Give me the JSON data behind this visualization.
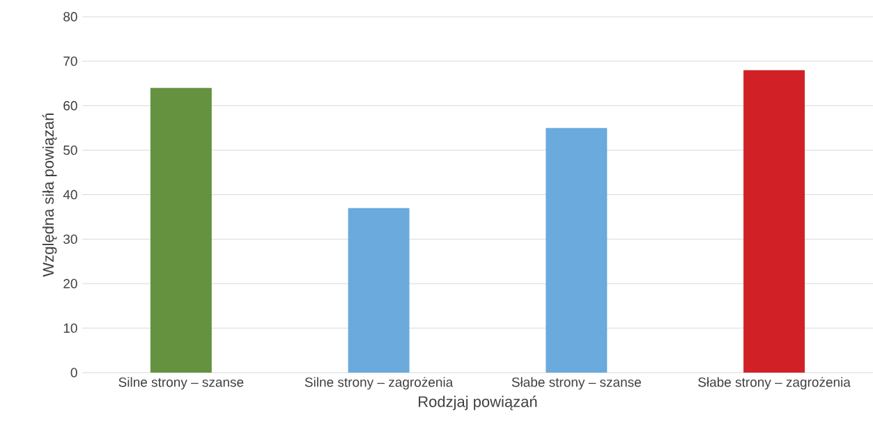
{
  "chart_data": {
    "type": "bar",
    "xlabel": "Rodzjaj powiązań",
    "ylabel": "Względna siła powiązań",
    "categories": [
      "Silne strony – szanse",
      "Silne strony – zagrożenia",
      "Słabe strony – szanse",
      "Słabe strony – zagrożenia"
    ],
    "values": [
      64,
      37,
      55,
      68
    ],
    "colors": [
      "#64923f",
      "#6aaadd",
      "#6aaadd",
      "#d12127"
    ],
    "ylim": [
      0,
      80
    ],
    "yticks": [
      0,
      10,
      20,
      30,
      40,
      50,
      60,
      70,
      80
    ],
    "grid": "y"
  }
}
